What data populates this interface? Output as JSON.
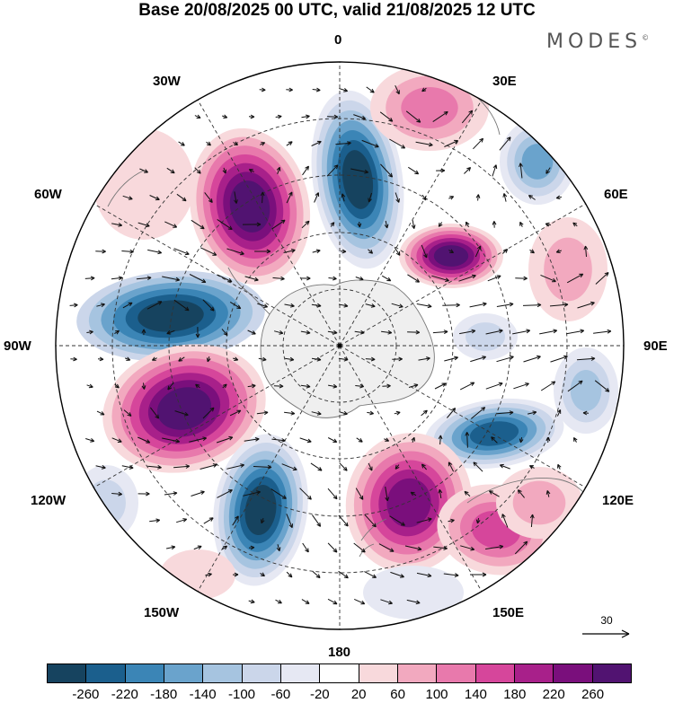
{
  "header": {
    "title": "Base 20/08/2025 00 UTC, valid 21/08/2025 12 UTC",
    "brand": "MODES",
    "brand_mark": "©"
  },
  "longitude_labels": {
    "deg0": "0",
    "deg30e": "30E",
    "deg60e": "60E",
    "deg90e": "90E",
    "deg120e": "120E",
    "deg150e": "150E",
    "deg180": "180",
    "deg150w": "150W",
    "deg120w": "120W",
    "deg90w": "90W",
    "deg60w": "60W",
    "deg30w": "30W"
  },
  "reference_vector": {
    "value": "30"
  },
  "colorbar": {
    "ticks": [
      "-260",
      "-220",
      "-180",
      "-140",
      "-100",
      "-60",
      "-20",
      "20",
      "60",
      "100",
      "140",
      "180",
      "220",
      "260"
    ],
    "colors": [
      "#16435f",
      "#1b5f8d",
      "#3b85b6",
      "#6aa3cc",
      "#a6c4e0",
      "#cbd6ea",
      "#e6e8f3",
      "#ffffff",
      "#f8d9dc",
      "#f2a9bf",
      "#e879ac",
      "#d6469b",
      "#a8208a",
      "#7a0f7c",
      "#511371"
    ]
  },
  "colors": {
    "grid": "#333333",
    "coast": "#777777",
    "arrows": "#111111",
    "antarctica": "#f0f0f0"
  }
}
